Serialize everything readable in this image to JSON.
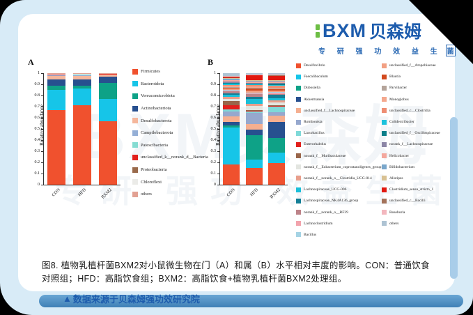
{
  "header": {
    "logo_text": "BXM",
    "logo_cn": "贝森姆",
    "tagline_main": "专 研 强 功 效 益 生",
    "tagline_last": "菌",
    "brand_blue": "#1d5cad",
    "brand_green": "#6dbe45"
  },
  "watermark": {
    "line1": "BXM贝森姆",
    "line2": "专研 强功 效益生菌"
  },
  "caption": {
    "text": "图8. 植物乳植杆菌BXM2对小鼠微生物在门（A）和属（B）水平相对丰度的影响。CON：普通饮食对照组；HFD：高脂饮食组；BXM2：高脂饮食+植物乳植杆菌BXM2处理组。"
  },
  "footer": {
    "marker": "▲",
    "text": "数据来源于贝森姆强功效研究院"
  },
  "chart_data": [
    {
      "id": "A",
      "type": "bar",
      "stacked": true,
      "title": "A",
      "ylabel": "Relative abundance",
      "ylim": [
        0,
        1
      ],
      "yticks": [
        "0",
        "0.1",
        "0.2",
        "0.3",
        "0.4",
        "0.5",
        "0.6",
        "0.7",
        "0.8",
        "0.9",
        "1"
      ],
      "grid": false,
      "legend_position": "right",
      "categories": [
        "CON",
        "HFD",
        "BXM2"
      ],
      "series": [
        {
          "name": "Firmicutes",
          "color": "#f0512e",
          "values": [
            0.67,
            0.71,
            0.57
          ]
        },
        {
          "name": "Bacteroidota",
          "color": "#16c5e8",
          "values": [
            0.18,
            0.15,
            0.2
          ]
        },
        {
          "name": "Verrucomicrobiota",
          "color": "#0ea287",
          "values": [
            0.037,
            0.03,
            0.145
          ]
        },
        {
          "name": "Actinobacteriota",
          "color": "#27508f",
          "values": [
            0.055,
            0.055,
            0.053
          ]
        },
        {
          "name": "Desulfobacterota",
          "color": "#f5b79c",
          "values": [
            0.033,
            0.03,
            0.018
          ]
        },
        {
          "name": "Campilobacterota",
          "color": "#95afd6",
          "values": [
            0.006,
            0.012,
            0.005
          ]
        },
        {
          "name": "Patescibacteria",
          "color": "#85dcd2",
          "values": [
            0.005,
            0.003,
            0.003
          ]
        },
        {
          "name": "unclassified_k__norank_d__Bacteria",
          "color": "#e2201c",
          "values": [
            0.003,
            0.002,
            0.002
          ]
        },
        {
          "name": "Proteobacteria",
          "color": "#9a6a4b",
          "values": [
            0.004,
            0.002,
            0.002
          ]
        },
        {
          "name": "Chloroflexi",
          "color": "#ebebe8",
          "values": [
            0.003,
            0.002,
            0.001
          ]
        },
        {
          "name": "others",
          "color": "#e2a193",
          "values": [
            0.004,
            0.004,
            0.001
          ]
        }
      ]
    },
    {
      "id": "B",
      "type": "bar",
      "stacked": true,
      "title": "B",
      "ylabel": "Relative abundance",
      "ylim": [
        0,
        1
      ],
      "yticks": [
        "0",
        "0.1",
        "0.2",
        "0.3",
        "0.4",
        "0.5",
        "0.6",
        "0.7",
        "0.8",
        "0.9",
        "1"
      ],
      "grid": false,
      "legend_position": "right-two-columns",
      "legend_split_index": 16,
      "categories": [
        "CON",
        "HFD",
        "BXM2"
      ],
      "series": [
        {
          "name": "Desulfovibrio",
          "color": "#f0512e",
          "values": [
            0.18,
            0.15,
            0.195
          ]
        },
        {
          "name": "Faecalibaculum",
          "color": "#16c5e8",
          "values": [
            0.33,
            0.075,
            0.095
          ]
        },
        {
          "name": "Dubosiella",
          "color": "#0ea287",
          "values": [
            0.02,
            0.22,
            0.13
          ]
        },
        {
          "name": "Akkermansia",
          "color": "#27508f",
          "values": [
            0.035,
            0.05,
            0.145
          ]
        },
        {
          "name": "unclassified_f__Lachnospiraceae",
          "color": "#f5af90",
          "values": [
            0.05,
            0.05,
            0.055
          ]
        },
        {
          "name": "Romboutsia",
          "color": "#96a8ce",
          "values": [
            0.04,
            0.1,
            0.03
          ]
        },
        {
          "name": "Lactobacillus",
          "color": "#7fd9d8",
          "values": [
            0.02,
            0.01,
            0.05
          ]
        },
        {
          "name": "Enterorhabdus",
          "color": "#e2201c",
          "values": [
            0.035,
            0.005,
            0.005
          ]
        },
        {
          "name": "norank_f__Muribaculaceae",
          "color": "#99664a",
          "values": [
            0.04,
            0.01,
            0.005
          ]
        },
        {
          "name": "norank_f__Eubacterium_coprostanoligenes_group",
          "color": "#e3e5e0",
          "values": [
            0.02,
            0.035,
            0.025
          ]
        },
        {
          "name": "norank_f__norank_o__Clostridia_UCG-014",
          "color": "#e99f8c",
          "values": [
            0.02,
            0.02,
            0.02
          ]
        },
        {
          "name": "Lachnospiraceae_UCG-006",
          "color": "#19bfd9",
          "values": [
            0.015,
            0.045,
            0.02
          ]
        },
        {
          "name": "Lachnospiraceae_NK4A136_group",
          "color": "#137e96",
          "values": [
            0.015,
            0.02,
            0.03
          ]
        },
        {
          "name": "norank_f__norank_o__RF39",
          "color": "#bd8389",
          "values": [
            0.015,
            0.02,
            0.01
          ]
        },
        {
          "name": "Lachnoclostridium",
          "color": "#f2a3ac",
          "values": [
            0.01,
            0.01,
            0.01
          ]
        },
        {
          "name": "Bacillus",
          "color": "#a5d3e4",
          "values": [
            0.005,
            0.005,
            0.005
          ]
        },
        {
          "name": "unclassified_f__Atopobiaceae",
          "color": "#f2a083",
          "values": [
            0.01,
            0.02,
            0.015
          ]
        },
        {
          "name": "Blautia",
          "color": "#d24a1e",
          "values": [
            0.01,
            0.015,
            0.01
          ]
        },
        {
          "name": "Parvibacter",
          "color": "#b4a49a",
          "values": [
            0.005,
            0.01,
            0.005
          ]
        },
        {
          "name": "Monoglobus",
          "color": "#f4a88e",
          "values": [
            0.01,
            0.01,
            0.01
          ]
        },
        {
          "name": "unclassified_c__Clostridia",
          "color": "#ee8d72",
          "values": [
            0.01,
            0.015,
            0.015
          ]
        },
        {
          "name": "Colidextribacter",
          "color": "#1bc2dc",
          "values": [
            0.01,
            0.005,
            0.01
          ]
        },
        {
          "name": "unclassified_f__Oscillospiraceae",
          "color": "#0c7f8a",
          "values": [
            0.01,
            0.005,
            0.015
          ]
        },
        {
          "name": "norank_f__Lachnospiraceae",
          "color": "#8c86a6",
          "values": [
            0.01,
            0.01,
            0.005
          ]
        },
        {
          "name": "Helicobacter",
          "color": "#f4a89e",
          "values": [
            0.01,
            0.01,
            0.01
          ]
        },
        {
          "name": "Bifidobacterium",
          "color": "#7aa7cb",
          "values": [
            0.015,
            0.005,
            0.005
          ]
        },
        {
          "name": "Alistipes",
          "color": "#d8c193",
          "values": [
            0.005,
            0.005,
            0.005
          ]
        },
        {
          "name": "Clostridium_sensu_stricto_1",
          "color": "#e1180f",
          "values": [
            0.01,
            0.045,
            0.04
          ]
        },
        {
          "name": "unclassified_c__Bacilli",
          "color": "#a3725a",
          "values": [
            0.005,
            0.005,
            0.005
          ]
        },
        {
          "name": "Roseburia",
          "color": "#f3b7be",
          "values": [
            0.005,
            0.005,
            0.005
          ]
        },
        {
          "name": "others",
          "color": "#aec3d3",
          "values": [
            0.025,
            0.01,
            0.015
          ]
        }
      ]
    }
  ]
}
